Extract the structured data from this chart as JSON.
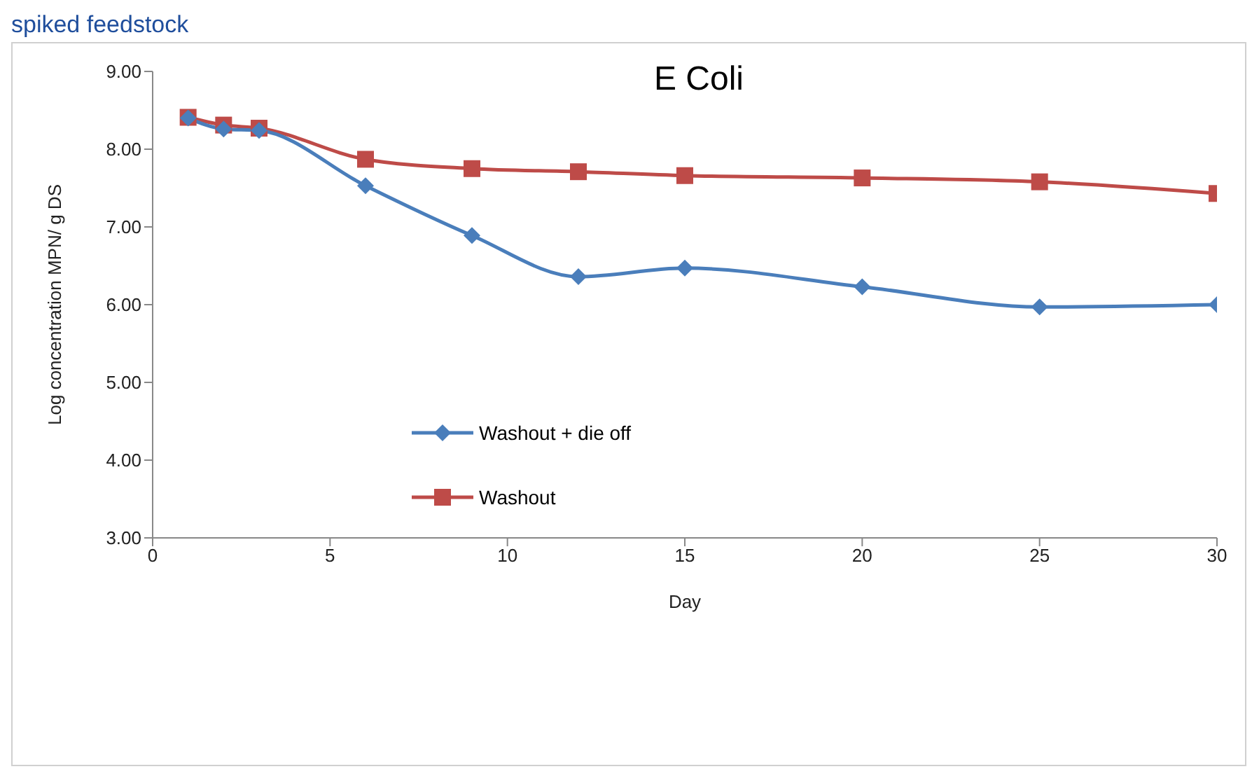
{
  "chart_data": {
    "type": "line",
    "title": "E Coli",
    "xlabel": "Day",
    "ylabel": "Log concentration MPN/ g DS",
    "annotations": [
      "spiked feedstock"
    ],
    "x": [
      1,
      2,
      3,
      6,
      9,
      12,
      15,
      20,
      25,
      30
    ],
    "series": [
      {
        "name": "Washout + die off",
        "color": "#4a7ebb",
        "marker": "diamond",
        "values": [
          8.4,
          8.26,
          8.24,
          7.53,
          6.89,
          6.36,
          6.47,
          6.23,
          5.97,
          6.0
        ]
      },
      {
        "name": "Washout",
        "color": "#be4b48",
        "marker": "square",
        "values": [
          8.41,
          8.31,
          8.27,
          7.87,
          7.75,
          7.71,
          7.66,
          7.63,
          7.58,
          7.43
        ]
      }
    ],
    "xlim": [
      0,
      30
    ],
    "xticks": [
      0,
      5,
      10,
      15,
      20,
      25,
      30
    ],
    "ylim": [
      3,
      9
    ],
    "yticks": [
      {
        "value": 3,
        "label": "3.00"
      },
      {
        "value": 4,
        "label": "4.00"
      },
      {
        "value": 5,
        "label": "5.00"
      },
      {
        "value": 6,
        "label": "6.00"
      },
      {
        "value": 7,
        "label": "7.00"
      },
      {
        "value": 8,
        "label": "8.00"
      },
      {
        "value": 9,
        "label": "9.00"
      }
    ],
    "grid": false,
    "legend": "left",
    "line_style": "solid"
  }
}
